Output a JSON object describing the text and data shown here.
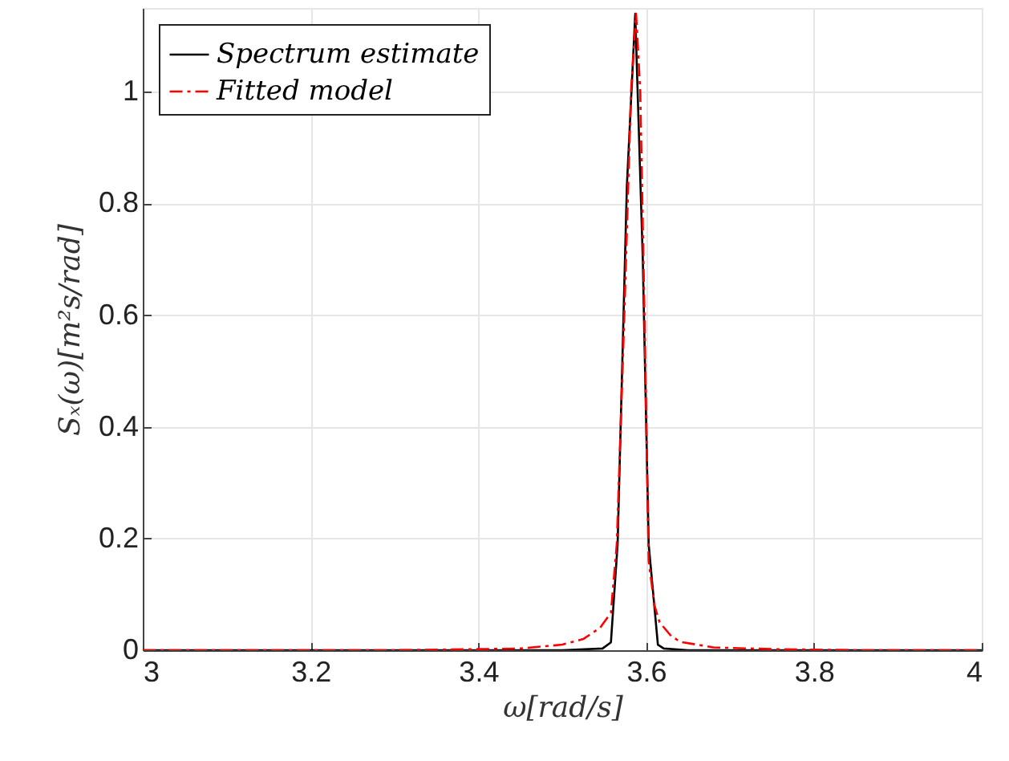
{
  "chart_data": {
    "type": "line",
    "xlabel": "ω[rad/s]",
    "ylabel": "Sₓ(ω)[m²s/rad]",
    "xlim": [
      3,
      4
    ],
    "ylim": [
      0,
      1.15
    ],
    "xticks": [
      3,
      3.2,
      3.4,
      3.6,
      3.8,
      4
    ],
    "yticks": [
      0,
      0.2,
      0.4,
      0.6,
      0.8,
      1
    ],
    "grid": true,
    "legend": "top left",
    "series": [
      {
        "name": "Spectrum estimate",
        "color": "#000000",
        "line_style": "solid",
        "x": [
          3,
          3.3,
          3.5,
          3.548,
          3.558,
          3.566,
          3.577,
          3.587,
          3.596,
          3.603,
          3.614,
          3.621,
          3.65,
          3.8,
          4
        ],
        "values": [
          0,
          0,
          0,
          0.003,
          0.014,
          0.19,
          0.83,
          1.14,
          0.7,
          0.19,
          0.01,
          0.003,
          0,
          0,
          0
        ]
      },
      {
        "name": "Fitted model",
        "color": "#ff0000",
        "line_style": "dashed",
        "x": [
          3,
          3.3,
          3.45,
          3.5,
          3.525,
          3.545,
          3.558,
          3.565,
          3.574,
          3.582,
          3.588,
          3.593,
          3.598,
          3.603,
          3.61,
          3.616,
          3.63,
          3.641,
          3.68,
          3.75,
          3.85,
          4
        ],
        "values": [
          0,
          0,
          0.003,
          0.01,
          0.02,
          0.04,
          0.067,
          0.19,
          0.6,
          1.0,
          1.14,
          1.0,
          0.6,
          0.16,
          0.08,
          0.05,
          0.025,
          0.015,
          0.005,
          0.002,
          0,
          0
        ]
      }
    ]
  }
}
